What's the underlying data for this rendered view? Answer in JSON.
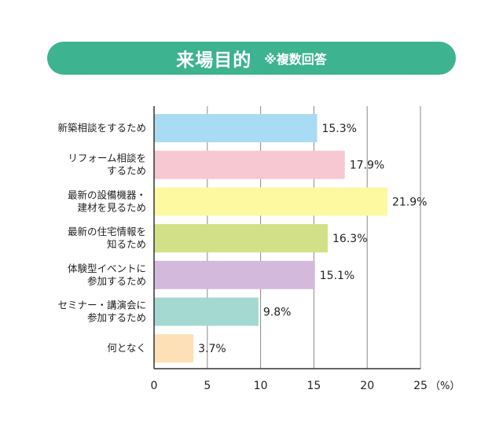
{
  "header": {
    "title": "来場目的",
    "subtitle": "※複数回答"
  },
  "chart_data": {
    "type": "bar",
    "orientation": "horizontal",
    "categories": [
      [
        "新築相談をするため"
      ],
      [
        "リフォーム相談を",
        "するため"
      ],
      [
        "最新の設備機器・",
        "建材を見るため"
      ],
      [
        "最新の住宅情報を",
        "知るため"
      ],
      [
        "体験型イベントに",
        "参加するため"
      ],
      [
        "セミナー・講演会に",
        "参加するため"
      ],
      [
        "何となく"
      ]
    ],
    "values": [
      15.3,
      17.9,
      21.9,
      16.3,
      15.1,
      9.8,
      3.7
    ],
    "value_labels": [
      "15.3%",
      "17.9%",
      "21.9%",
      "16.3%",
      "15.1%",
      "9.8%",
      "3.7%"
    ],
    "colors": [
      "#a9dcf4",
      "#f7c8d2",
      "#fdf9a0",
      "#d2e187",
      "#d3b9db",
      "#a4d9d2",
      "#fde0b5"
    ],
    "xlim": [
      0,
      25
    ],
    "xticks": [
      "0",
      "5",
      "10",
      "15",
      "20",
      "25"
    ],
    "x_unit": "（%）",
    "grid": true
  }
}
